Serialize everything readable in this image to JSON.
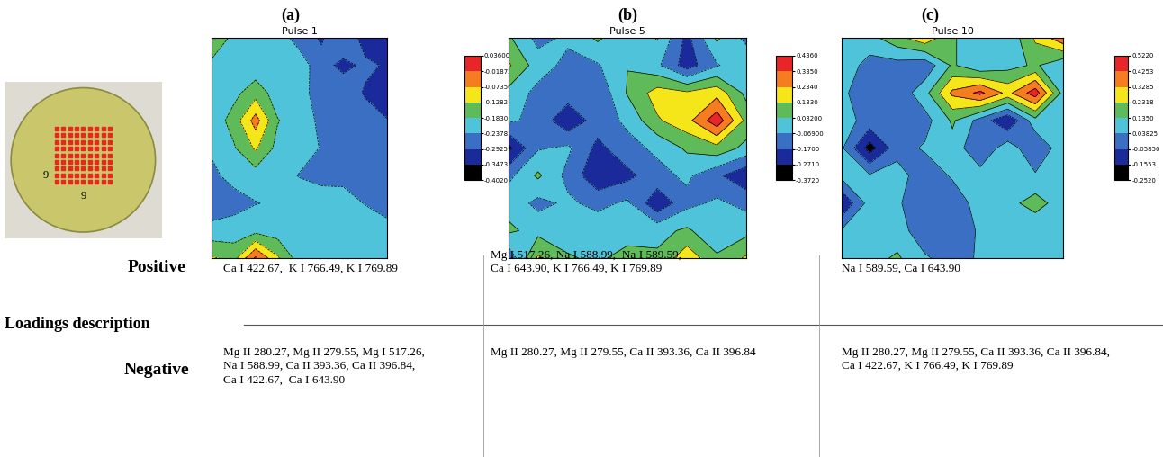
{
  "sample": {
    "spots": {
      "rows": 9,
      "columns": 9
    }
  },
  "panel_labels": [
    "(a)",
    "(b)",
    "(c)"
  ],
  "chart_data": [
    {
      "type": "contour",
      "title": "Pulse 1",
      "tick_labels": false,
      "colors": [
        "#000000",
        "#1a2a9a",
        "#3a6fc4",
        "#4fc3d9",
        "#5fba5a",
        "#f5e61a",
        "#f57c1f",
        "#e8262a"
      ],
      "colorbar_range": [
        -0.402,
        0.036
      ],
      "colorbar_ticks": [
        {
          "value": -0.402,
          "label": "-0.4020"
        },
        -0.3473,
        -0.2925,
        -0.2378,
        {
          "value": -0.183,
          "label": "-0.1830"
        },
        -0.1282,
        {
          "value": -0.0735,
          "label": "-0.07350"
        },
        -0.01875,
        {
          "value": 0.036,
          "label": "0.03600"
        }
      ],
      "cells": [
        [
          -0.13,
          -0.2,
          -0.22,
          -0.21,
          -0.26,
          -0.3,
          -0.24,
          -0.32,
          -0.35
        ],
        [
          -0.2,
          -0.21,
          -0.22,
          -0.23,
          -0.21,
          -0.27,
          -0.31,
          -0.28,
          -0.3
        ],
        [
          -0.22,
          -0.2,
          -0.15,
          -0.21,
          -0.22,
          -0.26,
          -0.25,
          -0.3,
          -0.33
        ],
        [
          -0.22,
          -0.16,
          -0.05,
          -0.18,
          -0.21,
          -0.25,
          -0.27,
          -0.26,
          -0.29
        ],
        [
          -0.23,
          -0.19,
          -0.12,
          -0.2,
          -0.22,
          -0.24,
          -0.26,
          -0.27,
          -0.28
        ],
        [
          -0.25,
          -0.22,
          -0.21,
          -0.22,
          -0.24,
          -0.26,
          -0.25,
          -0.26,
          -0.27
        ],
        [
          -0.27,
          -0.26,
          -0.24,
          -0.23,
          -0.21,
          -0.2,
          -0.22,
          -0.24,
          -0.26
        ],
        [
          -0.22,
          -0.21,
          -0.2,
          -0.21,
          -0.22,
          -0.21,
          -0.2,
          -0.21,
          -0.22
        ],
        [
          -0.12,
          -0.15,
          -0.01,
          -0.12,
          -0.21,
          -0.22,
          -0.2,
          -0.21,
          -0.22
        ]
      ]
    },
    {
      "type": "contour",
      "title": "Pulse 5",
      "tick_labels": false,
      "colors": [
        "#000000",
        "#1a2a9a",
        "#3a6fc4",
        "#4fc3d9",
        "#5fba5a",
        "#f5e61a",
        "#f57c1f",
        "#e8262a"
      ],
      "colorbar_range": [
        -0.372,
        0.436
      ],
      "colorbar_ticks": [
        {
          "value": -0.372,
          "label": "-0.3720"
        },
        {
          "value": -0.271,
          "label": "-0.2710"
        },
        {
          "value": -0.17,
          "label": "-0.1700"
        },
        {
          "value": -0.069,
          "label": "-0.06900"
        },
        {
          "value": 0.032,
          "label": "0.03200"
        },
        {
          "value": 0.133,
          "label": "0.1330"
        },
        {
          "value": 0.234,
          "label": "0.2340"
        },
        {
          "value": 0.335,
          "label": "0.3350"
        },
        {
          "value": 0.436,
          "label": "0.4360"
        }
      ],
      "cells": [
        [
          0.05,
          -0.1,
          -0.05,
          0.05,
          -0.05,
          0.04,
          -0.2,
          0.05,
          -0.1
        ],
        [
          0.15,
          -0.02,
          -0.1,
          -0.08,
          0.03,
          -0.05,
          -0.22,
          -0.08,
          0.02
        ],
        [
          0.0,
          -0.1,
          -0.12,
          -0.15,
          0.04,
          0.18,
          0.15,
          0.2,
          0.0
        ],
        [
          -0.05,
          -0.1,
          -0.25,
          -0.12,
          -0.05,
          0.12,
          0.2,
          0.4,
          0.1
        ],
        [
          -0.3,
          -0.08,
          -0.05,
          -0.2,
          -0.1,
          -0.05,
          0.05,
          0.1,
          0.0
        ],
        [
          -0.1,
          0.05,
          -0.1,
          -0.25,
          -0.2,
          -0.1,
          -0.05,
          -0.15,
          -0.25
        ],
        [
          0.0,
          -0.1,
          -0.05,
          -0.1,
          -0.05,
          -0.25,
          -0.1,
          -0.05,
          -0.1
        ],
        [
          0.05,
          0.0,
          -0.05,
          0.0,
          -0.05,
          0.0,
          0.05,
          -0.05,
          0.0
        ],
        [
          -0.15,
          0.15,
          0.05,
          0.0,
          0.1,
          0.05,
          0.2,
          0.05,
          0.15
        ]
      ]
    },
    {
      "type": "contour",
      "title": "Pulse 10",
      "tick_labels": false,
      "colors": [
        "#000000",
        "#1a2a9a",
        "#3a6fc4",
        "#4fc3d9",
        "#5fba5a",
        "#f5e61a",
        "#f57c1f",
        "#e8262a"
      ],
      "colorbar_range": [
        -0.252,
        0.522
      ],
      "colorbar_ticks": [
        {
          "value": -0.252,
          "label": "-0.2520"
        },
        -0.1553,
        {
          "value": -0.0585,
          "label": "-0.05850"
        },
        0.03825,
        {
          "value": 0.135,
          "label": "0.1350"
        },
        0.2318,
        0.3285,
        0.4253,
        {
          "value": 0.522,
          "label": "0.5220"
        }
      ],
      "cells": [
        [
          0.05,
          0.1,
          0.2,
          0.3,
          0.15,
          0.05,
          0.05,
          0.25,
          0.4
        ],
        [
          0.1,
          0.0,
          0.0,
          -0.03,
          0.15,
          0.05,
          0.1,
          0.15,
          0.05
        ],
        [
          0.05,
          0.0,
          -0.03,
          0.1,
          0.35,
          0.45,
          0.3,
          0.48,
          0.1
        ],
        [
          0.08,
          0.0,
          -0.02,
          0.0,
          0.15,
          0.0,
          -0.15,
          0.1,
          0.05
        ],
        [
          0.05,
          -0.2,
          0.0,
          0.05,
          0.1,
          -0.05,
          0.1,
          -0.05,
          0.1
        ],
        [
          0.07,
          0.05,
          0.08,
          -0.02,
          0.05,
          0.08,
          0.05,
          0.05,
          0.08
        ],
        [
          -0.15,
          0.08,
          0.05,
          -0.02,
          -0.02,
          0.08,
          0.1,
          0.18,
          0.08
        ],
        [
          0.05,
          0.1,
          0.08,
          -0.02,
          -0.02,
          0.05,
          0.05,
          0.05,
          0.05
        ],
        [
          0.08,
          0.1,
          0.15,
          0.05,
          0.0,
          0.05,
          0.08,
          0.1,
          0.1
        ]
      ]
    }
  ],
  "table": {
    "title": "Loadings description",
    "rows": [
      {
        "name": "Positive",
        "cells": [
          [
            "Ca I 422.67,  K I 766.49, K I 769.89"
          ],
          [
            "Mg I 517.26, Na I 588.99,  Na I 589.59,",
            "Ca I 643.90, K I 766.49, K I 769.89"
          ],
          [
            "Na I 589.59, Ca I 643.90"
          ]
        ]
      },
      {
        "name": "Negative",
        "cells": [
          [
            "Mg II 280.27, Mg II 279.55, Mg I 517.26,",
            "Na I 588.99, Ca II 393.36, Ca II 396.84,",
            "Ca I 422.67,  Ca I 643.90"
          ],
          [
            "Mg II 280.27, Mg II 279.55, Ca II 393.36, Ca II 396.84"
          ],
          [
            "Mg II 280.27, Mg II 279.55, Ca II 393.36, Ca II 396.84,",
            "Ca I 422.67, K I 766.49, K I 769.89"
          ]
        ]
      }
    ]
  }
}
